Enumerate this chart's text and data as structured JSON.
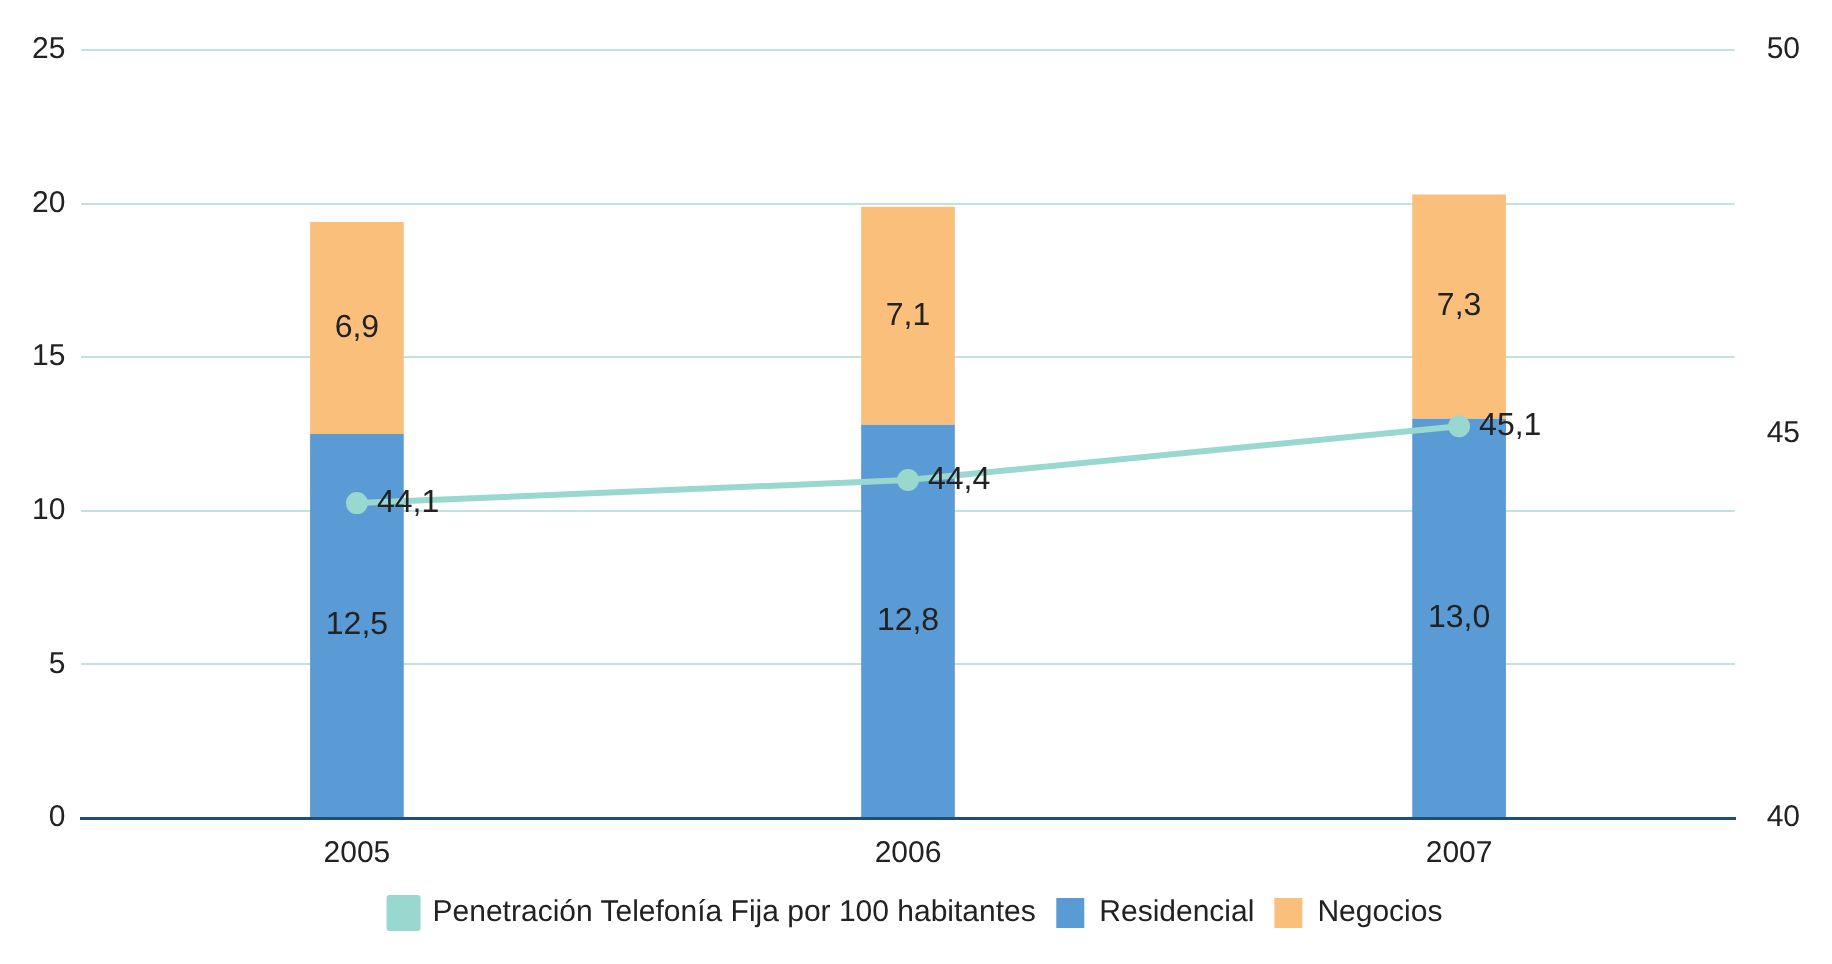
{
  "chart_data": {
    "type": "bar",
    "stacked": true,
    "categories": [
      "2005",
      "2006",
      "2007"
    ],
    "series": [
      {
        "name": "Residencial",
        "color": "#5b9bd5",
        "values": [
          12.5,
          12.8,
          13.0
        ],
        "value_labels": [
          "12,5",
          "12,8",
          "13,0"
        ]
      },
      {
        "name": "Negocios",
        "color": "#fbbf7c",
        "values": [
          6.9,
          7.1,
          7.3
        ],
        "value_labels": [
          "6,9",
          "7,1",
          "7,3"
        ]
      },
      {
        "name": "Penetración Telefonía Fija por 100 habitantes",
        "type": "line",
        "axis": "y2",
        "color": "#99d8cf",
        "values": [
          44.1,
          44.4,
          45.1
        ],
        "value_labels": [
          "44,1",
          "44,4",
          "45,1"
        ]
      }
    ],
    "ylim": [
      0,
      25
    ],
    "yticks": [
      0,
      5,
      10,
      15,
      20,
      25
    ],
    "y2lim": [
      40,
      50
    ],
    "y2ticks": [
      40,
      45,
      50
    ],
    "grid": "y",
    "legend": "bottom",
    "marker": "circle"
  }
}
